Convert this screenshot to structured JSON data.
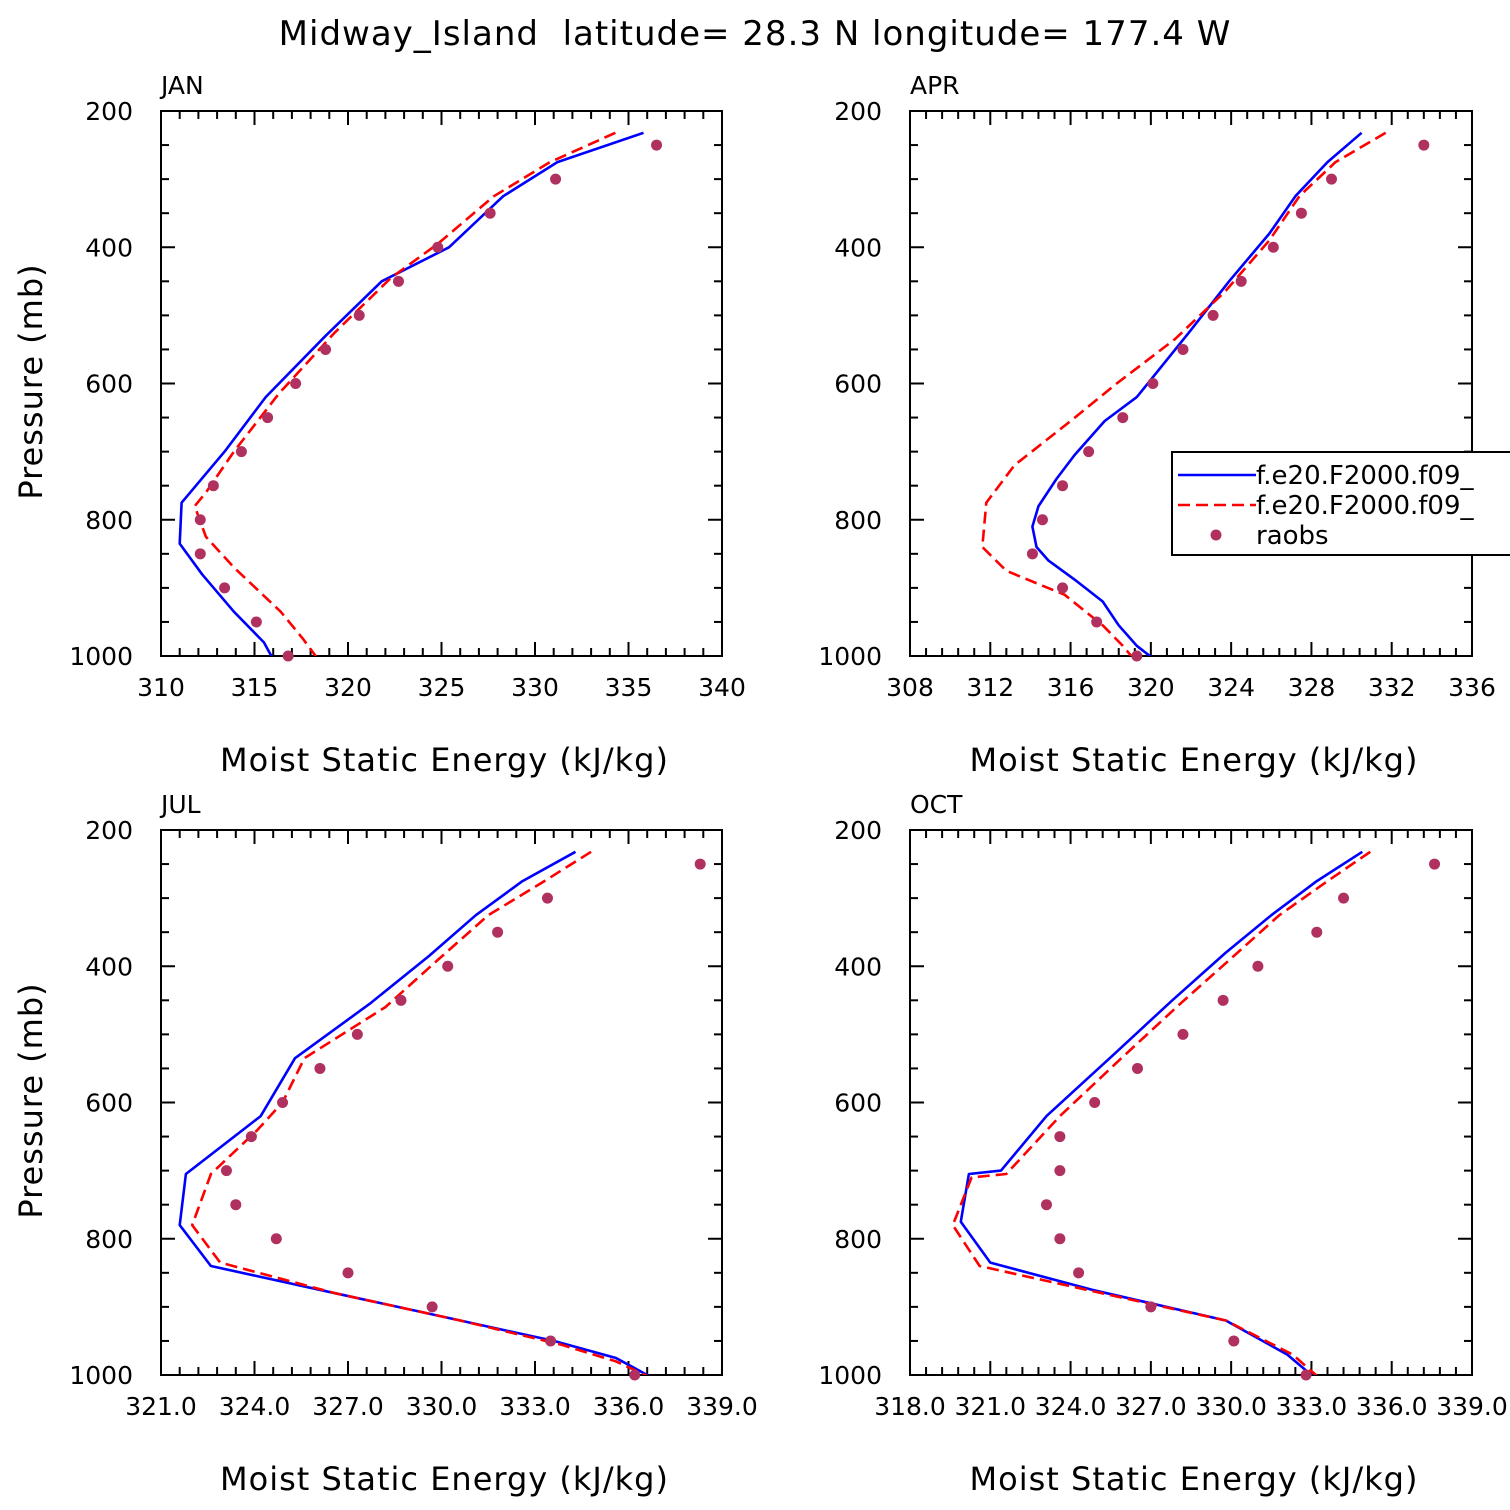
{
  "title": "Midway_Island  latitude= 28.3 N longitude= 177.4 W",
  "chart_data": [
    {
      "type": "line",
      "panel": "JAN",
      "xlabel": "Moist Static Energy (kJ/kg)",
      "ylabel": "Pressure (mb)",
      "xlim": [
        310,
        340
      ],
      "ylim": [
        200,
        1000
      ],
      "y_reversed": true,
      "xticks": [
        310,
        315,
        320,
        325,
        330,
        335,
        340
      ],
      "xtick_labels": [
        "310",
        "315",
        "320",
        "325",
        "330",
        "335",
        "340"
      ],
      "yticks": [
        200,
        400,
        600,
        800,
        1000
      ],
      "ytick_labels": [
        "200",
        "400",
        "600",
        "800",
        "1000"
      ],
      "legend_visible": false,
      "series": [
        {
          "name": "f.e20.F2000.f09_",
          "style": "solid",
          "color": "#0000ff",
          "x": [
            335.8,
            331.2,
            328.3,
            325.4,
            321.8,
            318.8,
            315.6,
            313.4,
            311.1,
            311.0,
            312.2,
            313.9,
            315.5,
            316.1
          ],
          "y": [
            232,
            275,
            325,
            400,
            450,
            530,
            620,
            700,
            775,
            835,
            880,
            935,
            980,
            1010
          ]
        },
        {
          "name": "f.e20.F2000.f09_",
          "style": "dashed",
          "color": "#ff0000",
          "x": [
            334.3,
            330.8,
            327.8,
            324.8,
            322.3,
            319.3,
            316.3,
            313.9,
            312.4,
            311.8,
            312.4,
            313.9,
            316.4,
            317.6,
            318.4
          ],
          "y": [
            232,
            275,
            325,
            395,
            445,
            525,
            615,
            700,
            760,
            780,
            825,
            870,
            935,
            975,
            1005
          ]
        },
        {
          "name": "raobs",
          "style": "markers",
          "color": "#b03060",
          "x": [
            336.5,
            331.1,
            327.6,
            324.8,
            322.7,
            320.6,
            318.8,
            317.2,
            315.7,
            314.3,
            312.8,
            312.1,
            312.1,
            313.4,
            315.1,
            316.8
          ],
          "y": [
            250,
            300,
            350,
            400,
            450,
            500,
            550,
            600,
            650,
            700,
            750,
            800,
            850,
            900,
            950,
            1000
          ]
        }
      ]
    },
    {
      "type": "line",
      "panel": "APR",
      "xlabel": "Moist Static Energy (kJ/kg)",
      "ylabel": "",
      "xlim": [
        308,
        336
      ],
      "ylim": [
        200,
        1000
      ],
      "y_reversed": true,
      "xticks": [
        308,
        312,
        316,
        320,
        324,
        328,
        332,
        336
      ],
      "xtick_labels": [
        "308",
        "312",
        "316",
        "320",
        "324",
        "328",
        "332",
        "336"
      ],
      "yticks": [
        200,
        400,
        600,
        800,
        1000
      ],
      "ytick_labels": [
        "200",
        "400",
        "600",
        "800",
        "1000"
      ],
      "legend_visible": true,
      "legend_position": "right",
      "legend_labels": [
        "f.e20.F2000.f09_",
        "f.e20.F2000.f09_",
        "raobs"
      ],
      "series": [
        {
          "name": "f.e20.F2000.f09_",
          "style": "solid",
          "color": "#0000ff",
          "x": [
            330.5,
            328.8,
            327.2,
            325.9,
            323.9,
            321.9,
            319.3,
            317.7,
            316.2,
            315.3,
            314.4,
            314.1,
            314.3,
            314.9,
            316.3,
            317.6,
            318.4,
            319.3,
            320.6
          ],
          "y": [
            232,
            275,
            325,
            380,
            450,
            525,
            620,
            655,
            705,
            740,
            780,
            810,
            840,
            860,
            890,
            920,
            955,
            985,
            1015
          ]
        },
        {
          "name": "f.e20.F2000.f09_",
          "style": "dashed",
          "color": "#ff0000",
          "x": [
            331.7,
            329.2,
            327.4,
            325.9,
            323.7,
            321.2,
            318.3,
            316.0,
            313.2,
            311.8,
            311.6,
            312.8,
            315.7,
            317.6,
            318.6,
            319.3
          ],
          "y": [
            232,
            275,
            325,
            390,
            465,
            535,
            600,
            655,
            720,
            775,
            840,
            875,
            910,
            955,
            985,
            1010
          ]
        },
        {
          "name": "raobs",
          "style": "markers",
          "color": "#b03060",
          "x": [
            333.6,
            329.0,
            327.5,
            326.1,
            324.5,
            323.1,
            321.6,
            320.1,
            318.6,
            316.9,
            315.6,
            314.6,
            314.1,
            315.6,
            317.3,
            319.3
          ],
          "y": [
            250,
            300,
            350,
            400,
            450,
            500,
            550,
            600,
            650,
            700,
            750,
            800,
            850,
            900,
            950,
            1000
          ]
        }
      ]
    },
    {
      "type": "line",
      "panel": "JUL",
      "xlabel": "Moist Static Energy (kJ/kg)",
      "ylabel": "Pressure (mb)",
      "xlim": [
        321,
        339
      ],
      "ylim": [
        200,
        1000
      ],
      "y_reversed": true,
      "xticks": [
        321,
        324,
        327,
        330,
        333,
        336,
        339
      ],
      "xtick_labels": [
        "321.0",
        "324.0",
        "327.0",
        "330.0",
        "333.0",
        "336.0",
        "339.0"
      ],
      "yticks": [
        200,
        400,
        600,
        800,
        1000
      ],
      "ytick_labels": [
        "200",
        "400",
        "600",
        "800",
        "1000"
      ],
      "legend_visible": false,
      "series": [
        {
          "name": "f.e20.F2000.f09_",
          "style": "solid",
          "color": "#0000ff",
          "x": [
            334.3,
            332.6,
            331.1,
            329.6,
            327.7,
            325.3,
            324.2,
            321.8,
            321.6,
            322.6,
            326.6,
            330.6,
            333.6,
            335.6,
            337.2
          ],
          "y": [
            232,
            275,
            325,
            385,
            455,
            535,
            620,
            705,
            780,
            840,
            880,
            920,
            950,
            975,
            1015
          ]
        },
        {
          "name": "f.e20.F2000.f09_",
          "style": "dashed",
          "color": "#ff0000",
          "x": [
            334.8,
            333.3,
            331.5,
            329.9,
            328.2,
            325.6,
            324.9,
            324.1,
            322.6,
            322.0,
            322.9,
            326.6,
            330.6,
            333.8,
            335.6,
            337.0
          ],
          "y": [
            232,
            275,
            325,
            390,
            460,
            535,
            600,
            640,
            705,
            780,
            835,
            880,
            920,
            955,
            980,
            1010
          ]
        },
        {
          "name": "raobs",
          "style": "markers",
          "color": "#b03060",
          "x": [
            338.3,
            333.4,
            331.8,
            330.2,
            328.7,
            327.3,
            326.1,
            324.9,
            323.9,
            323.1,
            323.4,
            324.7,
            327.0,
            329.7,
            333.5,
            336.2
          ],
          "y": [
            250,
            300,
            350,
            400,
            450,
            500,
            550,
            600,
            650,
            700,
            750,
            800,
            850,
            900,
            950,
            1000
          ]
        }
      ]
    },
    {
      "type": "line",
      "panel": "OCT",
      "xlabel": "Moist Static Energy (kJ/kg)",
      "ylabel": "",
      "xlim": [
        318,
        339
      ],
      "ylim": [
        200,
        1000
      ],
      "y_reversed": true,
      "xticks": [
        318,
        321,
        324,
        327,
        330,
        333,
        336,
        339
      ],
      "xtick_labels": [
        "318.0",
        "321.0",
        "324.0",
        "327.0",
        "330.0",
        "333.0",
        "336.0",
        "339.0"
      ],
      "yticks": [
        200,
        400,
        600,
        800,
        1000
      ],
      "ytick_labels": [
        "200",
        "400",
        "600",
        "800",
        "1000"
      ],
      "legend_visible": false,
      "series": [
        {
          "name": "f.e20.F2000.f09_",
          "style": "solid",
          "color": "#0000ff",
          "x": [
            334.9,
            333.2,
            331.5,
            329.8,
            327.8,
            325.6,
            323.1,
            321.4,
            320.2,
            319.9,
            321.0,
            324.8,
            329.8,
            332.1,
            333.3
          ],
          "y": [
            232,
            275,
            325,
            380,
            450,
            530,
            620,
            700,
            705,
            775,
            835,
            875,
            920,
            970,
            1010
          ]
        },
        {
          "name": "f.e20.F2000.f09_",
          "style": "dashed",
          "color": "#ff0000",
          "x": [
            335.2,
            333.6,
            331.8,
            330.1,
            328.1,
            325.9,
            323.6,
            321.6,
            320.3,
            319.6,
            320.6,
            324.6,
            329.8,
            332.3,
            333.6
          ],
          "y": [
            232,
            275,
            325,
            385,
            455,
            535,
            620,
            705,
            710,
            780,
            840,
            875,
            920,
            970,
            1015
          ]
        },
        {
          "name": "raobs",
          "style": "markers",
          "color": "#b03060",
          "x": [
            337.6,
            334.2,
            333.2,
            331.0,
            329.7,
            328.2,
            326.5,
            324.9,
            323.6,
            323.6,
            323.1,
            323.6,
            324.3,
            327.0,
            330.1,
            332.8
          ],
          "y": [
            250,
            300,
            350,
            400,
            450,
            500,
            550,
            600,
            650,
            700,
            750,
            800,
            850,
            900,
            950,
            1000
          ]
        }
      ]
    }
  ]
}
